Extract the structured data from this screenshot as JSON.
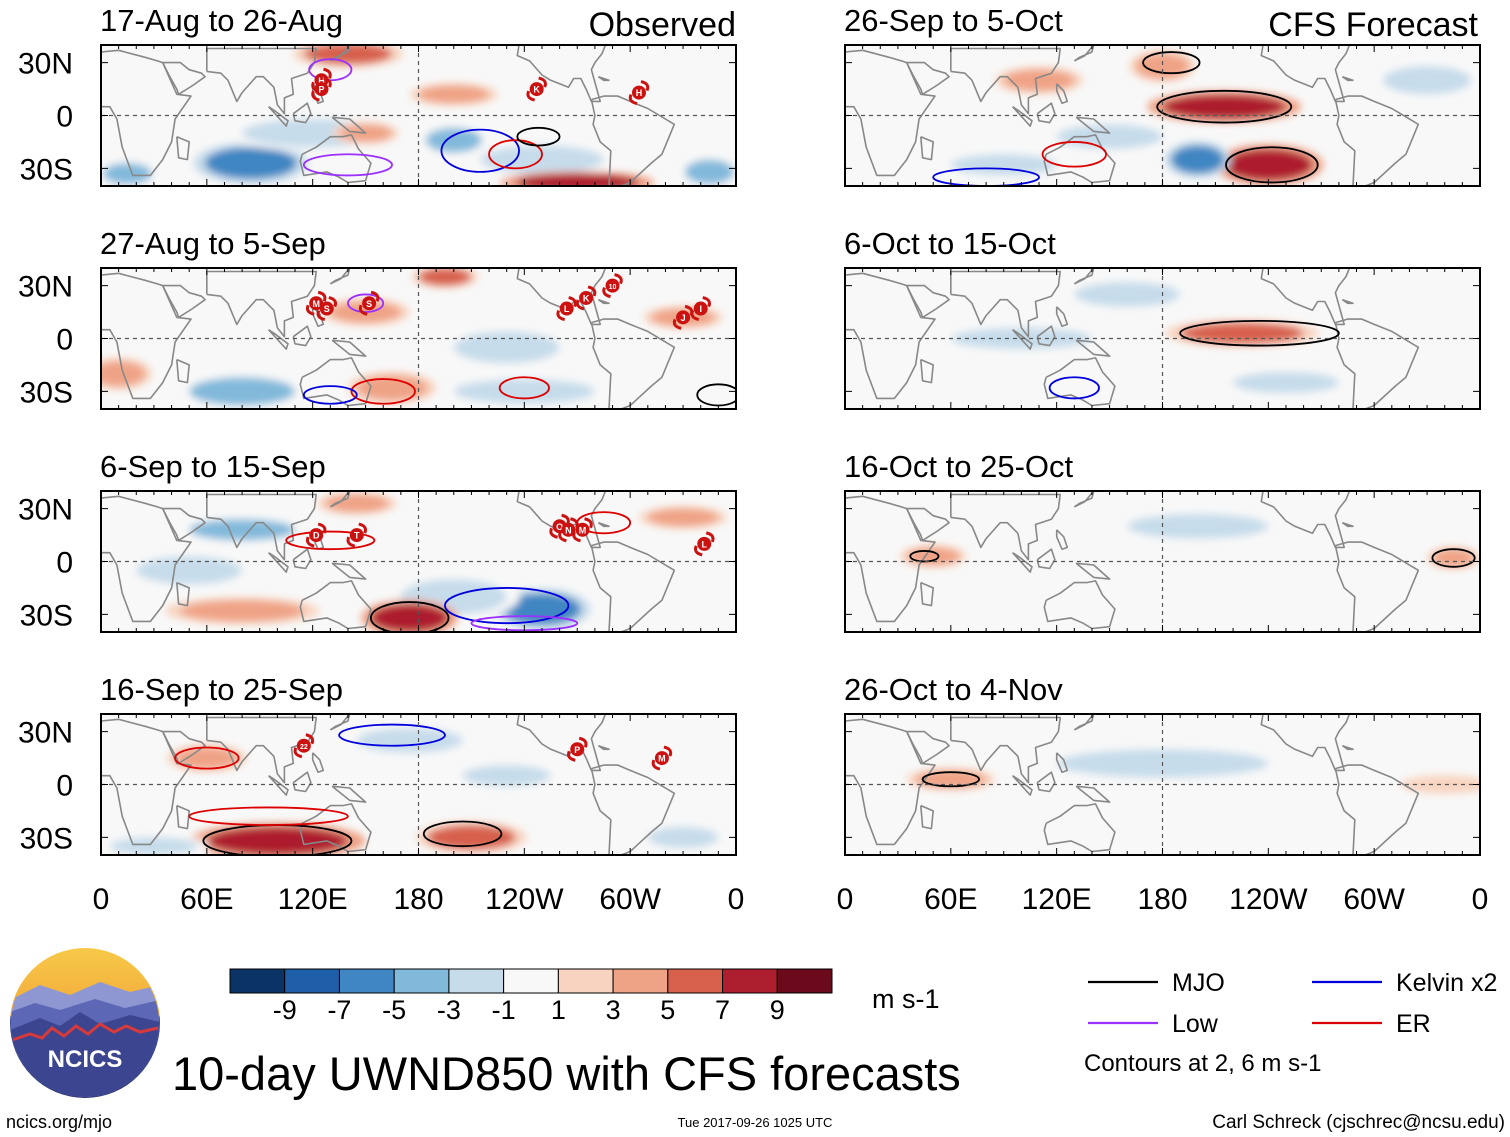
{
  "header": {
    "left_label": "Observed",
    "right_label": "CFS Forecast"
  },
  "chart_data": {
    "type": "heatmap",
    "variable": "10-day UWND850 anomaly (m s-1)",
    "title": "10-day UWND850 with CFS forecasts",
    "x_ticks": [
      "0",
      "60E",
      "120E",
      "180",
      "120W",
      "60W",
      "0"
    ],
    "y_ticks": [
      "30N",
      "0",
      "30S"
    ],
    "xlim": [
      0,
      360
    ],
    "ylim": [
      -40,
      40
    ],
    "columns": [
      {
        "label": "Observed",
        "panels": [
          {
            "period": "17-Aug to 26-Aug",
            "storms": [
              {
                "label": "H",
                "lon": 125,
                "lat": 20
              },
              {
                "label": "P",
                "lon": 125,
                "lat": 15
              },
              {
                "label": "K",
                "lon": 247,
                "lat": 15
              },
              {
                "label": "H",
                "lon": 305,
                "lat": 13
              }
            ],
            "anomaly_blobs": [
              {
                "lon": 85,
                "lat": -27,
                "rx": 26,
                "ry": 9,
                "v": -7
              },
              {
                "lon": 15,
                "lat": -33,
                "rx": 14,
                "ry": 6,
                "v": -5
              },
              {
                "lon": 345,
                "lat": -32,
                "rx": 14,
                "ry": 7,
                "v": -5
              },
              {
                "lon": 200,
                "lat": -14,
                "rx": 16,
                "ry": 7,
                "v": -5
              },
              {
                "lon": 120,
                "lat": -10,
                "rx": 40,
                "ry": 8,
                "v": -3
              },
              {
                "lon": 250,
                "lat": -25,
                "rx": 35,
                "ry": 8,
                "v": -3
              },
              {
                "lon": 140,
                "lat": 35,
                "rx": 25,
                "ry": 6,
                "v": 5
              },
              {
                "lon": 270,
                "lat": -38,
                "rx": 35,
                "ry": 5,
                "v": 7
              },
              {
                "lon": 200,
                "lat": 12,
                "rx": 20,
                "ry": 5,
                "v": 3
              },
              {
                "lon": 150,
                "lat": -10,
                "rx": 15,
                "ry": 5,
                "v": 3
              }
            ],
            "contours": [
              {
                "kind": "Kelvin",
                "lon": 215,
                "lat": -20,
                "rx": 22,
                "ry": 12
              },
              {
                "kind": "Low",
                "lon": 140,
                "lat": -28,
                "rx": 25,
                "ry": 6
              },
              {
                "kind": "ER",
                "lon": 235,
                "lat": -22,
                "rx": 15,
                "ry": 8
              },
              {
                "kind": "MJO",
                "lon": 248,
                "lat": -12,
                "rx": 12,
                "ry": 5
              },
              {
                "kind": "Low",
                "lon": 130,
                "lat": 26,
                "rx": 12,
                "ry": 6
              }
            ]
          },
          {
            "period": "27-Aug to 5-Sep",
            "storms": [
              {
                "label": "M",
                "lon": 122,
                "lat": 20
              },
              {
                "label": "S",
                "lon": 128,
                "lat": 17
              },
              {
                "label": "S",
                "lon": 152,
                "lat": 20
              },
              {
                "label": "L",
                "lon": 264,
                "lat": 17
              },
              {
                "label": "K",
                "lon": 275,
                "lat": 23
              },
              {
                "label": "10",
                "lon": 290,
                "lat": 30
              },
              {
                "label": "J",
                "lon": 330,
                "lat": 12
              },
              {
                "label": "I",
                "lon": 340,
                "lat": 17
              }
            ],
            "anomaly_blobs": [
              {
                "lon": 80,
                "lat": -30,
                "rx": 30,
                "ry": 8,
                "v": -5
              },
              {
                "lon": 230,
                "lat": -5,
                "rx": 30,
                "ry": 9,
                "v": -3
              },
              {
                "lon": 240,
                "lat": -30,
                "rx": 40,
                "ry": 7,
                "v": -3
              },
              {
                "lon": 195,
                "lat": 35,
                "rx": 15,
                "ry": 5,
                "v": 5
              },
              {
                "lon": 150,
                "lat": 15,
                "rx": 20,
                "ry": 6,
                "v": 3
              },
              {
                "lon": 330,
                "lat": 12,
                "rx": 18,
                "ry": 5,
                "v": 3
              },
              {
                "lon": 10,
                "lat": -20,
                "rx": 15,
                "ry": 7,
                "v": 3
              },
              {
                "lon": 165,
                "lat": -28,
                "rx": 20,
                "ry": 7,
                "v": 3
              }
            ],
            "contours": [
              {
                "kind": "ER",
                "lon": 160,
                "lat": -30,
                "rx": 18,
                "ry": 7
              },
              {
                "kind": "ER",
                "lon": 240,
                "lat": -28,
                "rx": 14,
                "ry": 6
              },
              {
                "kind": "Kelvin",
                "lon": 130,
                "lat": -32,
                "rx": 15,
                "ry": 5
              },
              {
                "kind": "MJO",
                "lon": 350,
                "lat": -32,
                "rx": 12,
                "ry": 6
              },
              {
                "kind": "Low",
                "lon": 150,
                "lat": 20,
                "rx": 10,
                "ry": 5
              }
            ]
          },
          {
            "period": "6-Sep to 15-Sep",
            "storms": [
              {
                "label": "D",
                "lon": 122,
                "lat": 15
              },
              {
                "label": "T",
                "lon": 145,
                "lat": 15
              },
              {
                "label": "O",
                "lon": 260,
                "lat": 20
              },
              {
                "label": "N",
                "lon": 265,
                "lat": 18
              },
              {
                "label": "M",
                "lon": 273,
                "lat": 18
              },
              {
                "label": "L",
                "lon": 342,
                "lat": 10
              }
            ],
            "anomaly_blobs": [
              {
                "lon": 250,
                "lat": -27,
                "rx": 22,
                "ry": 9,
                "v": -7
              },
              {
                "lon": 80,
                "lat": 18,
                "rx": 30,
                "ry": 6,
                "v": -5
              },
              {
                "lon": 200,
                "lat": -20,
                "rx": 30,
                "ry": 10,
                "v": -3
              },
              {
                "lon": 50,
                "lat": -5,
                "rx": 30,
                "ry": 8,
                "v": -3
              },
              {
                "lon": 175,
                "lat": -32,
                "rx": 22,
                "ry": 8,
                "v": 7
              },
              {
                "lon": 80,
                "lat": -28,
                "rx": 35,
                "ry": 6,
                "v": 3
              },
              {
                "lon": 145,
                "lat": 33,
                "rx": 18,
                "ry": 5,
                "v": 3
              },
              {
                "lon": 330,
                "lat": 25,
                "rx": 20,
                "ry": 5,
                "v": 3
              }
            ],
            "contours": [
              {
                "kind": "MJO",
                "lon": 175,
                "lat": -32,
                "rx": 22,
                "ry": 9
              },
              {
                "kind": "Kelvin",
                "lon": 230,
                "lat": -25,
                "rx": 35,
                "ry": 10
              },
              {
                "kind": "Low",
                "lon": 240,
                "lat": -35,
                "rx": 30,
                "ry": 4
              },
              {
                "kind": "ER",
                "lon": 130,
                "lat": 12,
                "rx": 25,
                "ry": 5
              },
              {
                "kind": "ER",
                "lon": 285,
                "lat": 22,
                "rx": 15,
                "ry": 6
              }
            ]
          },
          {
            "period": "16-Sep to 25-Sep",
            "storms": [
              {
                "label": "22",
                "lon": 115,
                "lat": 22
              },
              {
                "label": "P",
                "lon": 270,
                "lat": 20
              },
              {
                "label": "M",
                "lon": 318,
                "lat": 15
              }
            ],
            "anomaly_blobs": [
              {
                "lon": 100,
                "lat": -32,
                "rx": 40,
                "ry": 8,
                "v": 7
              },
              {
                "lon": 210,
                "lat": -30,
                "rx": 25,
                "ry": 7,
                "v": 5
              },
              {
                "lon": 60,
                "lat": 15,
                "rx": 18,
                "ry": 6,
                "v": 3
              },
              {
                "lon": 175,
                "lat": 25,
                "rx": 30,
                "ry": 7,
                "v": -3
              },
              {
                "lon": 230,
                "lat": 5,
                "rx": 25,
                "ry": 6,
                "v": -3
              },
              {
                "lon": 30,
                "lat": -35,
                "rx": 25,
                "ry": 5,
                "v": -3
              },
              {
                "lon": 330,
                "lat": -30,
                "rx": 20,
                "ry": 6,
                "v": -3
              }
            ],
            "contours": [
              {
                "kind": "MJO",
                "lon": 100,
                "lat": -32,
                "rx": 42,
                "ry": 9
              },
              {
                "kind": "MJO",
                "lon": 205,
                "lat": -28,
                "rx": 22,
                "ry": 7
              },
              {
                "kind": "Kelvin",
                "lon": 165,
                "lat": 28,
                "rx": 30,
                "ry": 6
              },
              {
                "kind": "ER",
                "lon": 95,
                "lat": -18,
                "rx": 45,
                "ry": 5
              },
              {
                "kind": "ER",
                "lon": 60,
                "lat": 15,
                "rx": 18,
                "ry": 6
              }
            ]
          }
        ]
      },
      {
        "label": "CFS Forecast",
        "panels": [
          {
            "period": "26-Sep to 5-Oct",
            "storms": [],
            "anomaly_blobs": [
              {
                "lon": 215,
                "lat": 5,
                "rx": 35,
                "ry": 7,
                "v": 7
              },
              {
                "lon": 240,
                "lat": -28,
                "rx": 25,
                "ry": 9,
                "v": 7
              },
              {
                "lon": 200,
                "lat": -25,
                "rx": 15,
                "ry": 8,
                "v": -7
              },
              {
                "lon": 150,
                "lat": -12,
                "rx": 30,
                "ry": 7,
                "v": -3
              },
              {
                "lon": 90,
                "lat": -28,
                "rx": 30,
                "ry": 6,
                "v": -3
              },
              {
                "lon": 180,
                "lat": 28,
                "rx": 15,
                "ry": 7,
                "v": 3
              },
              {
                "lon": 330,
                "lat": 20,
                "rx": 25,
                "ry": 8,
                "v": -3
              },
              {
                "lon": 110,
                "lat": 20,
                "rx": 20,
                "ry": 6,
                "v": 3
              }
            ],
            "contours": [
              {
                "kind": "MJO",
                "lon": 215,
                "lat": 5,
                "rx": 38,
                "ry": 9
              },
              {
                "kind": "MJO",
                "lon": 242,
                "lat": -28,
                "rx": 26,
                "ry": 10
              },
              {
                "kind": "MJO",
                "lon": 185,
                "lat": 30,
                "rx": 16,
                "ry": 6
              },
              {
                "kind": "ER",
                "lon": 130,
                "lat": -22,
                "rx": 18,
                "ry": 7
              },
              {
                "kind": "Kelvin",
                "lon": 80,
                "lat": -35,
                "rx": 30,
                "ry": 5
              }
            ]
          },
          {
            "period": "6-Oct to 15-Oct",
            "storms": [],
            "anomaly_blobs": [
              {
                "lon": 225,
                "lat": 3,
                "rx": 35,
                "ry": 6,
                "v": 5
              },
              {
                "lon": 160,
                "lat": 25,
                "rx": 30,
                "ry": 7,
                "v": -3
              },
              {
                "lon": 100,
                "lat": 0,
                "rx": 40,
                "ry": 6,
                "v": -3
              },
              {
                "lon": 250,
                "lat": -25,
                "rx": 30,
                "ry": 6,
                "v": -3
              },
              {
                "lon": 80,
                "lat": -30,
                "rx": 25,
                "ry": 5,
                "v": -1
              }
            ],
            "contours": [
              {
                "kind": "MJO",
                "lon": 235,
                "lat": 3,
                "rx": 45,
                "ry": 7
              },
              {
                "kind": "Kelvin",
                "lon": 130,
                "lat": -28,
                "rx": 14,
                "ry": 6
              }
            ]
          },
          {
            "period": "16-Oct to 25-Oct",
            "storms": [],
            "anomaly_blobs": [
              {
                "lon": 50,
                "lat": 3,
                "rx": 15,
                "ry": 5,
                "v": 3
              },
              {
                "lon": 345,
                "lat": 2,
                "rx": 12,
                "ry": 5,
                "v": 3
              },
              {
                "lon": 200,
                "lat": 20,
                "rx": 40,
                "ry": 7,
                "v": -3
              },
              {
                "lon": 120,
                "lat": -25,
                "rx": 45,
                "ry": 6,
                "v": -1
              },
              {
                "lon": 260,
                "lat": -15,
                "rx": 40,
                "ry": 6,
                "v": -1
              }
            ],
            "contours": [
              {
                "kind": "MJO",
                "lon": 45,
                "lat": 3,
                "rx": 8,
                "ry": 3
              },
              {
                "kind": "MJO",
                "lon": 345,
                "lat": 2,
                "rx": 12,
                "ry": 5
              }
            ]
          },
          {
            "period": "26-Oct to 4-Nov",
            "storms": [],
            "anomaly_blobs": [
              {
                "lon": 60,
                "lat": 3,
                "rx": 20,
                "ry": 5,
                "v": 3
              },
              {
                "lon": 340,
                "lat": 0,
                "rx": 20,
                "ry": 4,
                "v": 1
              },
              {
                "lon": 180,
                "lat": 12,
                "rx": 60,
                "ry": 8,
                "v": -3
              },
              {
                "lon": 240,
                "lat": -25,
                "rx": 50,
                "ry": 7,
                "v": -1
              }
            ],
            "contours": [
              {
                "kind": "MJO",
                "lon": 60,
                "lat": 3,
                "rx": 16,
                "ry": 4
              }
            ]
          }
        ]
      }
    ],
    "colorbar": {
      "colors": [
        "#0b3366",
        "#1f5fa8",
        "#3f86c2",
        "#82b9db",
        "#c6dceb",
        "#f8f8f8",
        "#f8d4c0",
        "#efa386",
        "#d7614d",
        "#ad1e2e",
        "#6a0a1a"
      ],
      "labels": [
        "-9",
        "-7",
        "-5",
        "-3",
        "-1",
        "1",
        "3",
        "5",
        "7",
        "9"
      ],
      "units": "m s-1"
    },
    "legend": {
      "items": [
        {
          "name": "MJO",
          "color": "#000000"
        },
        {
          "name": "Kelvin x2",
          "color": "#0000dd"
        },
        {
          "name": "Low",
          "color": "#9b30ff"
        },
        {
          "name": "ER",
          "color": "#dd0000"
        }
      ],
      "note": "Contours at 2, 6 m s-1"
    }
  },
  "logo": {
    "text": "NCICS"
  },
  "footer": {
    "url": "ncics.org/mjo",
    "timestamp": "Tue 2017-09-26 1025 UTC",
    "credit": "Carl Schreck (cjschrec@ncsu.edu)"
  },
  "colors": {
    "land_outline": "#888888",
    "storm_fill": "#cc1111",
    "frame": "#000000"
  }
}
